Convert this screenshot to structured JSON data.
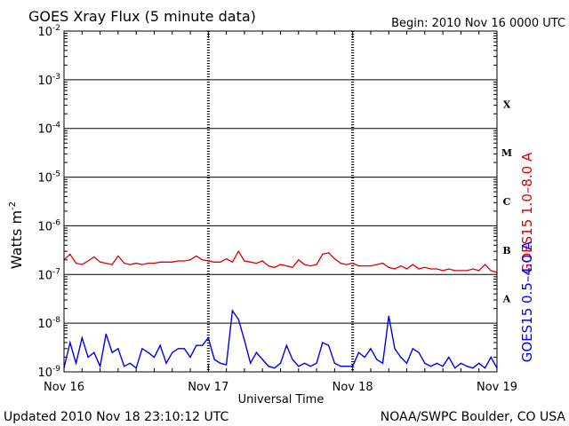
{
  "title": "GOES Xray Flux (5 minute data)",
  "begin_label": "Begin:  2010 Nov 16 0000 UTC",
  "ylabel": "Watts m",
  "ylabel_exp": "-2",
  "xlabel": "Universal Time",
  "footer_left": "Updated 2010 Nov 18 23:10:12 UTC",
  "footer_right": "NOAA/SWPC Boulder, CO USA",
  "right_label_long": "GOES15 1.0–8.0 A",
  "right_label_short": "GOES15 0.5–4.0 A",
  "colors": {
    "long": "#dd0000",
    "short": "#0000ee",
    "axis": "#000000"
  },
  "chart_data": {
    "type": "line",
    "yscale": "log",
    "ylim": [
      1e-09,
      0.01
    ],
    "y_ticks": [
      {
        "base": "10",
        "exp": "-2"
      },
      {
        "base": "10",
        "exp": "-3"
      },
      {
        "base": "10",
        "exp": "-4"
      },
      {
        "base": "10",
        "exp": "-5"
      },
      {
        "base": "10",
        "exp": "-6"
      },
      {
        "base": "10",
        "exp": "-7"
      },
      {
        "base": "10",
        "exp": "-8"
      },
      {
        "base": "10",
        "exp": "-9"
      }
    ],
    "x_ticks": [
      "Nov 16",
      "Nov 17",
      "Nov 18",
      "Nov 19"
    ],
    "xlim": [
      "2010-11-16 00:00",
      "2010-11-19 00:00"
    ],
    "flare_classes": [
      {
        "label": "X",
        "range": [
          0.0001,
          0.001
        ]
      },
      {
        "label": "M",
        "range": [
          1e-05,
          0.0001
        ]
      },
      {
        "label": "C",
        "range": [
          1e-06,
          1e-05
        ]
      },
      {
        "label": "B",
        "range": [
          1e-07,
          1e-06
        ]
      },
      {
        "label": "A",
        "range": [
          1e-08,
          1e-07
        ]
      }
    ],
    "series": [
      {
        "name": "GOES15 1.0–8.0 A",
        "color": "#dd0000",
        "x_hours": [
          0,
          1,
          2,
          3,
          4,
          5,
          6,
          7,
          8,
          9,
          10,
          11,
          12,
          13,
          14,
          15,
          16,
          17,
          18,
          19,
          20,
          21,
          22,
          23,
          24,
          25,
          26,
          27,
          28,
          29,
          30,
          31,
          32,
          33,
          34,
          35,
          36,
          37,
          38,
          39,
          40,
          41,
          42,
          43,
          44,
          45,
          46,
          47,
          48,
          49,
          50,
          51,
          52,
          53,
          54,
          55,
          56,
          57,
          58,
          59,
          60,
          61,
          62,
          63,
          64,
          65,
          66,
          67,
          68,
          69,
          70,
          71,
          72
        ],
        "values": [
          2e-07,
          2.6e-07,
          1.7e-07,
          1.6e-07,
          1.9e-07,
          2.3e-07,
          1.8e-07,
          1.7e-07,
          1.6e-07,
          2.4e-07,
          1.7e-07,
          1.6e-07,
          1.7e-07,
          1.6e-07,
          1.7e-07,
          1.7e-07,
          1.8e-07,
          1.8e-07,
          1.8e-07,
          1.9e-07,
          1.9e-07,
          2e-07,
          2.4e-07,
          2e-07,
          1.9e-07,
          1.8e-07,
          1.8e-07,
          2.1e-07,
          1.8e-07,
          3e-07,
          1.9e-07,
          1.8e-07,
          1.7e-07,
          1.9e-07,
          1.5e-07,
          1.4e-07,
          1.6e-07,
          1.5e-07,
          1.4e-07,
          2e-07,
          1.6e-07,
          1.5e-07,
          1.6e-07,
          2.6e-07,
          2.8e-07,
          2.1e-07,
          1.7e-07,
          1.6e-07,
          1.7e-07,
          1.5e-07,
          1.5e-07,
          1.5e-07,
          1.6e-07,
          1.7e-07,
          1.4e-07,
          1.3e-07,
          1.5e-07,
          1.3e-07,
          1.6e-07,
          1.3e-07,
          1.4e-07,
          1.3e-07,
          1.3e-07,
          1.2e-07,
          1.3e-07,
          1.2e-07,
          1.2e-07,
          1.2e-07,
          1.3e-07,
          1.2e-07,
          1.6e-07,
          1.2e-07,
          1.1e-07
        ]
      },
      {
        "name": "GOES15 0.5–4.0 A",
        "color": "#0000ee",
        "x_hours": [
          0,
          1,
          2,
          3,
          4,
          5,
          6,
          7,
          8,
          9,
          10,
          11,
          12,
          13,
          14,
          15,
          16,
          17,
          18,
          19,
          20,
          21,
          22,
          23,
          24,
          25,
          26,
          27,
          28,
          29,
          30,
          31,
          32,
          33,
          34,
          35,
          36,
          37,
          38,
          39,
          40,
          41,
          42,
          43,
          44,
          45,
          46,
          47,
          48,
          49,
          50,
          51,
          52,
          53,
          54,
          55,
          56,
          57,
          58,
          59,
          60,
          61,
          62,
          63,
          64,
          65,
          66,
          67,
          68,
          69,
          70,
          71,
          72
        ],
        "values": [
          1.2e-09,
          4e-09,
          1.5e-09,
          5e-09,
          2e-09,
          2.5e-09,
          1.3e-09,
          6e-09,
          2.5e-09,
          3e-09,
          1.3e-09,
          1.5e-09,
          1.2e-09,
          3e-09,
          2.5e-09,
          2e-09,
          3.5e-09,
          1.5e-09,
          2.5e-09,
          3e-09,
          3e-09,
          2e-09,
          3.5e-09,
          3.5e-09,
          5e-09,
          1.8e-09,
          1.5e-09,
          1.4e-09,
          1.8e-08,
          1.2e-08,
          4.5e-09,
          1.5e-09,
          2.5e-09,
          1.8e-09,
          1.3e-09,
          1.2e-09,
          1.5e-09,
          3.5e-09,
          1.8e-09,
          1.3e-09,
          1.5e-09,
          1.3e-09,
          1.5e-09,
          4e-09,
          3.5e-09,
          1.5e-09,
          1.3e-09,
          1.3e-09,
          1.3e-09,
          2.5e-09,
          2e-09,
          3e-09,
          1.8e-09,
          1.5e-09,
          1.4e-08,
          3e-09,
          2e-09,
          1.5e-09,
          3e-09,
          2.5e-09,
          1.5e-09,
          1.3e-09,
          1.5e-09,
          1.3e-09,
          2e-09,
          1.2e-09,
          1.5e-09,
          1.3e-09,
          1.2e-09,
          1.5e-09,
          1.2e-09,
          2e-09,
          1.2e-09
        ]
      }
    ]
  }
}
